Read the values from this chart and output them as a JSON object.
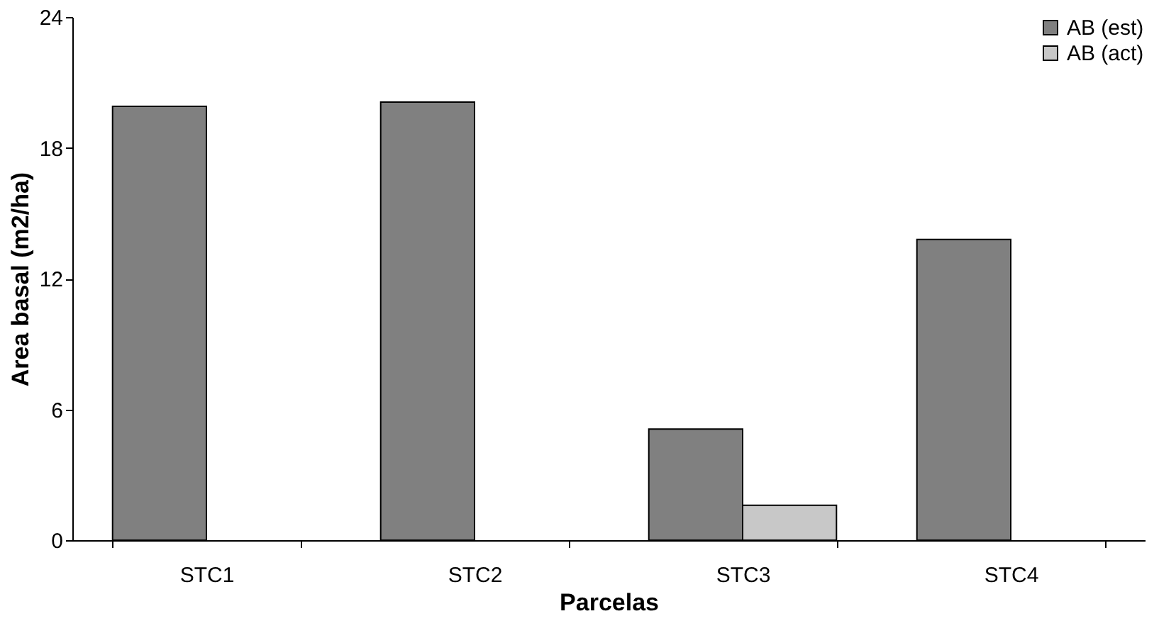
{
  "chart_data": {
    "type": "bar",
    "xlabel": "Parcelas",
    "ylabel": "Area basal (m2/ha)",
    "categories": [
      "STC1",
      "STC2",
      "STC3",
      "STC4"
    ],
    "series": [
      {
        "name": "AB (est)",
        "color": "#808080",
        "values": [
          19.9,
          20.1,
          5.1,
          13.8
        ]
      },
      {
        "name": "AB (act)",
        "color": "#c8c8c8",
        "values": [
          null,
          null,
          1.6,
          null
        ]
      }
    ],
    "ylim": [
      0,
      24
    ],
    "yticks": [
      0,
      6,
      12,
      18,
      24
    ],
    "grid": false,
    "legend": "top right"
  }
}
